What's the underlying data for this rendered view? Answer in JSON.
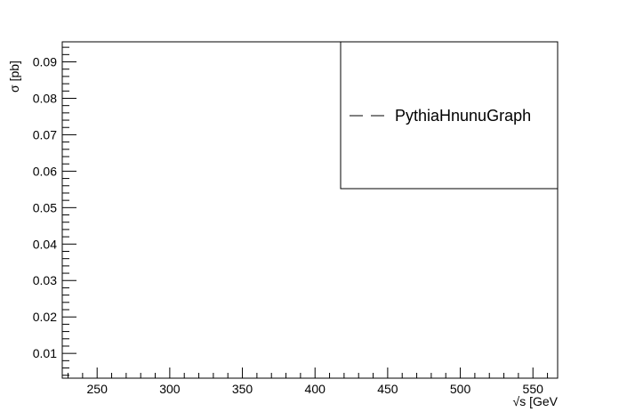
{
  "chart_data": {
    "type": "line",
    "title": "",
    "xlabel": "√s [GeV",
    "ylabel": "σ [pb]",
    "xlim": [
      226,
      567
    ],
    "ylim": [
      0.0032,
      0.0955
    ],
    "x_ticks": [
      250,
      300,
      350,
      400,
      450,
      500,
      550
    ],
    "x_tick_labels": [
      "250",
      "300",
      "350",
      "400",
      "450",
      "500",
      "550"
    ],
    "y_ticks": [
      0.01,
      0.02,
      0.03,
      0.04,
      0.05,
      0.06,
      0.07,
      0.08,
      0.09
    ],
    "y_tick_labels": [
      "0.01",
      "0.02",
      "0.03",
      "0.04",
      "0.05",
      "0.06",
      "0.07",
      "0.08",
      "0.09"
    ],
    "grid": false,
    "legend_position": "top-right",
    "series": [
      {
        "name": "PythiaHnunuGraph",
        "x": [],
        "y": [],
        "line_style": "dashed",
        "color": "#000000"
      }
    ]
  }
}
